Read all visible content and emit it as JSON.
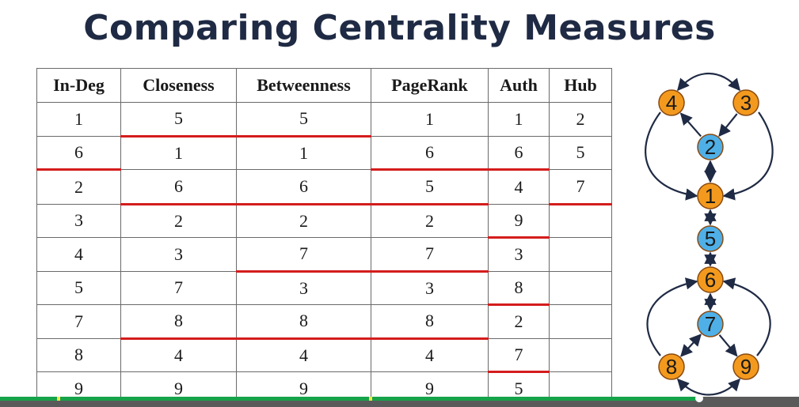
{
  "slide": {
    "title": "Comparing Centrality Measures"
  },
  "table": {
    "headers": [
      "In-Deg",
      "Closeness",
      "Betweenness",
      "PageRank",
      "Auth",
      "Hub"
    ],
    "rows": [
      [
        "1",
        "5",
        "5",
        "1",
        "1",
        "2"
      ],
      [
        "6",
        "1",
        "1",
        "6",
        "6",
        "5"
      ],
      [
        "2",
        "6",
        "6",
        "5",
        "4",
        "7"
      ],
      [
        "3",
        "2",
        "2",
        "2",
        "9",
        ""
      ],
      [
        "4",
        "3",
        "7",
        "7",
        "3",
        ""
      ],
      [
        "5",
        "7",
        "3",
        "3",
        "8",
        ""
      ],
      [
        "7",
        "8",
        "8",
        "8",
        "2",
        ""
      ],
      [
        "8",
        "4",
        "4",
        "4",
        "7",
        ""
      ],
      [
        "9",
        "9",
        "9",
        "9",
        "5",
        ""
      ]
    ],
    "tie_breaks": [
      [
        false,
        true,
        true,
        false,
        false,
        false
      ],
      [
        true,
        false,
        false,
        true,
        true,
        false
      ],
      [
        false,
        true,
        true,
        true,
        false,
        true
      ],
      [
        false,
        false,
        false,
        false,
        true,
        false
      ],
      [
        false,
        false,
        true,
        true,
        false,
        false
      ],
      [
        false,
        false,
        false,
        false,
        true,
        false
      ],
      [
        false,
        true,
        true,
        true,
        false,
        false
      ],
      [
        false,
        false,
        false,
        false,
        true,
        false
      ],
      [
        false,
        false,
        false,
        false,
        false,
        false
      ]
    ],
    "tie_color": "#d41c1c"
  },
  "graph": {
    "nodes": [
      {
        "id": "1",
        "color": "#f39a1e"
      },
      {
        "id": "2",
        "color": "#4fb0e8"
      },
      {
        "id": "3",
        "color": "#f39a1e"
      },
      {
        "id": "4",
        "color": "#f39a1e"
      },
      {
        "id": "5",
        "color": "#4fb0e8"
      },
      {
        "id": "6",
        "color": "#f39a1e"
      },
      {
        "id": "7",
        "color": "#4fb0e8"
      },
      {
        "id": "8",
        "color": "#f39a1e"
      },
      {
        "id": "9",
        "color": "#f39a1e"
      }
    ],
    "edges": [
      {
        "from": "4",
        "to": "3",
        "both": true
      },
      {
        "from": "2",
        "to": "4",
        "both": false
      },
      {
        "from": "3",
        "to": "2",
        "both": false
      },
      {
        "from": "4",
        "to": "1",
        "both": false
      },
      {
        "from": "3",
        "to": "1",
        "both": false
      },
      {
        "from": "2",
        "to": "1",
        "both": true
      },
      {
        "from": "1",
        "to": "5",
        "both": true
      },
      {
        "from": "5",
        "to": "6",
        "both": true
      },
      {
        "from": "6",
        "to": "7",
        "both": true
      },
      {
        "from": "8",
        "to": "6",
        "both": false
      },
      {
        "from": "9",
        "to": "6",
        "both": false
      },
      {
        "from": "7",
        "to": "8",
        "both": true
      },
      {
        "from": "7",
        "to": "9",
        "both": false
      },
      {
        "from": "8",
        "to": "9",
        "both": true
      }
    ],
    "edge_color": "#1f2a44"
  },
  "player": {
    "progress": 0.875
  }
}
